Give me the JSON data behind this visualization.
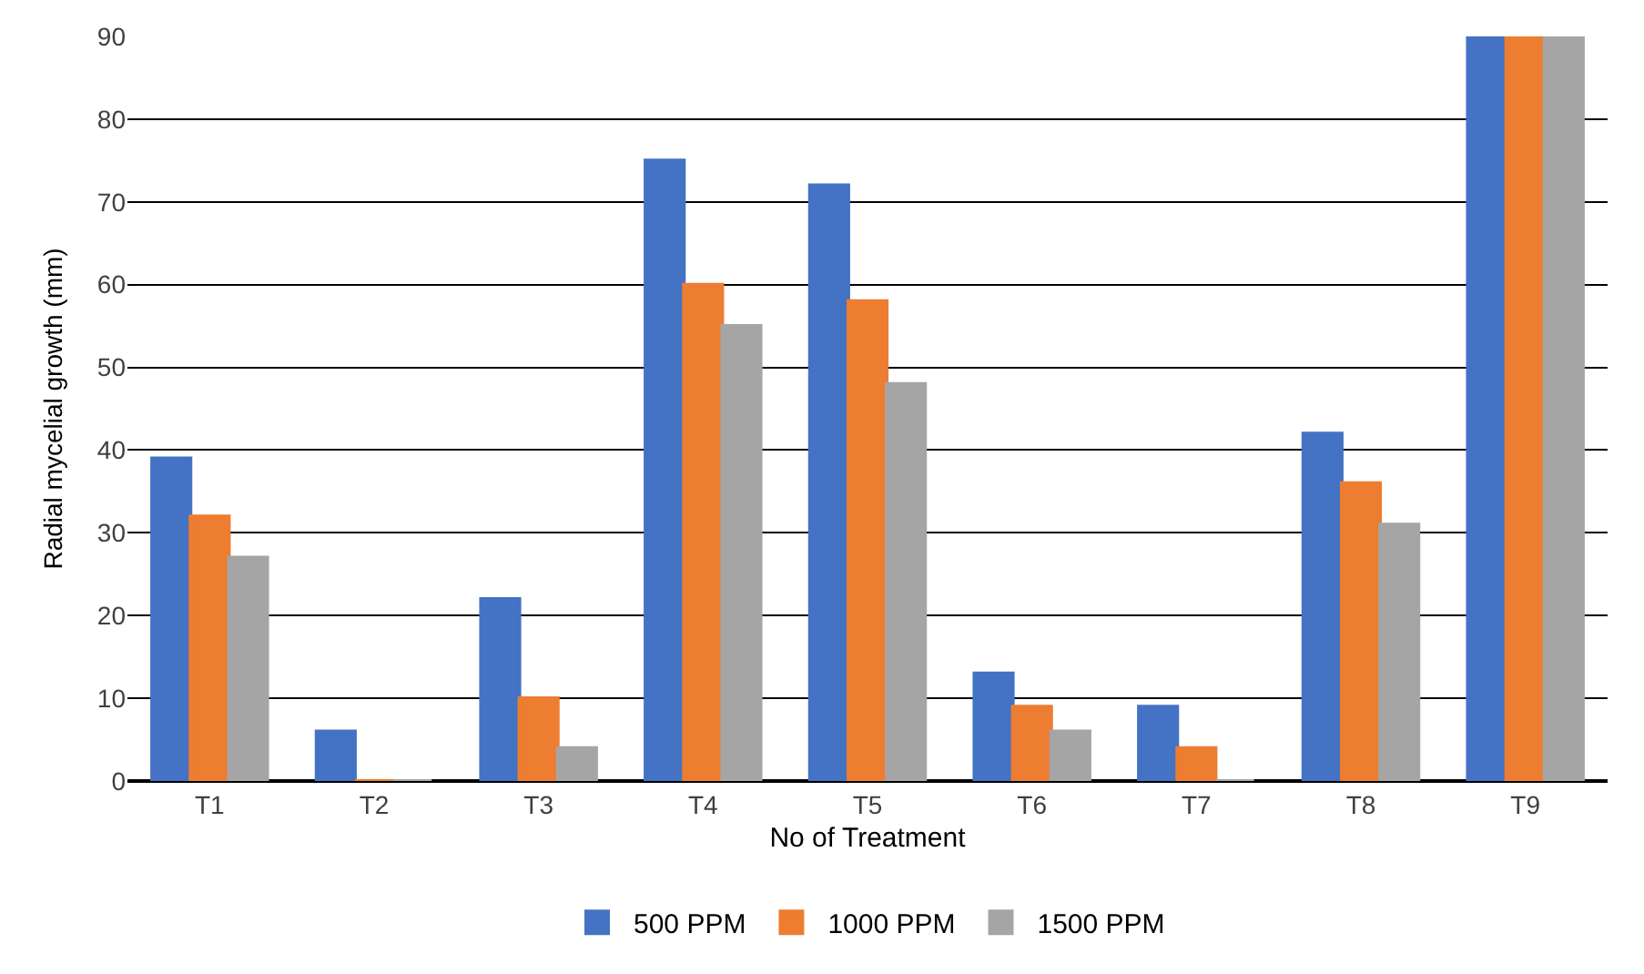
{
  "chart_data": {
    "type": "bar",
    "xlabel": "No of Treatment",
    "ylabel": "Radial mycelial growth (mm)",
    "categories": [
      "T1",
      "T2",
      "T3",
      "T4",
      "T5",
      "T6",
      "T7",
      "T8",
      "T9"
    ],
    "series": [
      {
        "name": "500 PPM",
        "color": "#4472c4",
        "values": [
          39,
          6,
          22,
          75,
          72,
          13,
          9,
          42,
          90
        ]
      },
      {
        "name": "1000 PPM",
        "color": "#ed7d31",
        "values": [
          32,
          0,
          10,
          60,
          58,
          9,
          4,
          36,
          90
        ]
      },
      {
        "name": "1500 PPM",
        "color": "#a5a5a5",
        "values": [
          27,
          0,
          4,
          55,
          48,
          6,
          0,
          31,
          90
        ]
      }
    ],
    "ylim": [
      0,
      90
    ],
    "yticks": [
      0,
      10,
      20,
      30,
      40,
      50,
      60,
      70,
      80,
      90
    ],
    "grid": "y",
    "legend": "bottom"
  }
}
